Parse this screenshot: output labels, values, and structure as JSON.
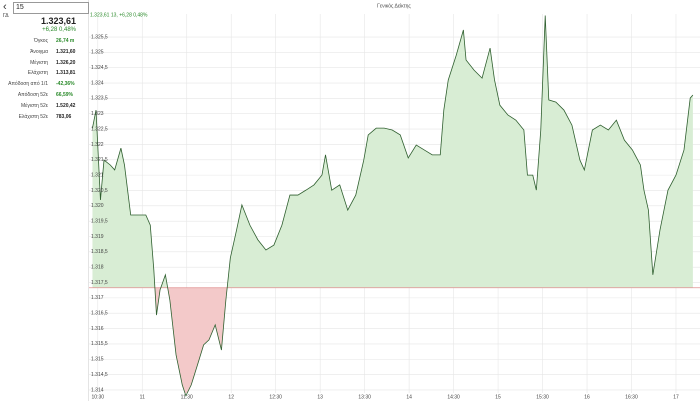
{
  "header": {
    "search": "15",
    "code": "ΓΔ"
  },
  "sidebar": {
    "last": "1.323,61",
    "change": "+6,28  0,48%",
    "rows": [
      {
        "label": "Όγκος",
        "value": "26,74 m",
        "positive": true
      },
      {
        "label": "Άνοιγμα",
        "value": "1.321,60",
        "positive": false
      },
      {
        "label": "Μέγιστη",
        "value": "1.326,20",
        "positive": false
      },
      {
        "label": "Ελάχιστη",
        "value": "1.313,81",
        "positive": false
      },
      {
        "label": "Απόδοση από 1/1",
        "value": "-42,36%",
        "positive": true
      },
      {
        "label": "Απόδοση 52ε",
        "value": "66,59%",
        "positive": true
      },
      {
        "label": "Μέγιστη 52ε",
        "value": "1.520,42",
        "positive": false
      },
      {
        "label": "Ελάχιστη 52ε",
        "value": "783,06",
        "positive": false
      }
    ]
  },
  "chart_data": {
    "type": "area",
    "title": "Γενικός Δείκτης",
    "subtitle": "1.323,61 13, +6,28 0,48%",
    "x": [
      10.44,
      10.48,
      10.53,
      10.57,
      10.64,
      10.69,
      10.76,
      10.8,
      10.87,
      10.96,
      11.04,
      11.09,
      11.13,
      11.16,
      11.2,
      11.26,
      11.31,
      11.38,
      11.45,
      11.49,
      11.55,
      11.62,
      11.69,
      11.75,
      11.82,
      11.89,
      11.94,
      11.99,
      12.06,
      12.12,
      12.21,
      12.3,
      12.39,
      12.48,
      12.57,
      12.66,
      12.75,
      12.84,
      12.93,
      13.02,
      13.06,
      13.13,
      13.22,
      13.31,
      13.4,
      13.49,
      13.54,
      13.63,
      13.72,
      13.81,
      13.9,
      13.99,
      14.08,
      14.17,
      14.26,
      14.35,
      14.39,
      14.44,
      14.53,
      14.61,
      14.64,
      14.73,
      14.82,
      14.91,
      14.96,
      15.02,
      15.11,
      15.2,
      15.29,
      15.33,
      15.39,
      15.43,
      15.48,
      15.53,
      15.57,
      15.65,
      15.74,
      15.83,
      15.92,
      15.97,
      16.06,
      16.15,
      16.24,
      16.33,
      16.42,
      16.51,
      16.6,
      16.64,
      16.69,
      16.74,
      16.82,
      16.91,
      17.0,
      17.09,
      17.16,
      17.19
    ],
    "values": [
      1322.53,
      1323.12,
      1320.19,
      1321.49,
      1321.33,
      1321.17,
      1321.88,
      1321.33,
      1319.7,
      1319.7,
      1319.7,
      1319.37,
      1317.91,
      1316.44,
      1317.26,
      1317.75,
      1316.93,
      1315.14,
      1314.16,
      1313.81,
      1314.16,
      1314.81,
      1315.47,
      1315.63,
      1316.12,
      1315.3,
      1316.93,
      1318.3,
      1319.21,
      1320.03,
      1319.37,
      1318.89,
      1318.56,
      1318.72,
      1319.37,
      1320.35,
      1320.35,
      1320.51,
      1320.68,
      1321.0,
      1321.66,
      1320.51,
      1320.68,
      1319.86,
      1320.35,
      1321.49,
      1322.31,
      1322.53,
      1322.53,
      1322.47,
      1322.31,
      1321.56,
      1321.98,
      1321.82,
      1321.66,
      1321.66,
      1323.12,
      1324.1,
      1324.91,
      1325.73,
      1324.75,
      1324.42,
      1324.16,
      1325.14,
      1324.1,
      1323.28,
      1322.96,
      1322.79,
      1322.47,
      1321.0,
      1321.0,
      1320.51,
      1322.47,
      1326.2,
      1323.45,
      1323.38,
      1323.12,
      1322.63,
      1321.49,
      1321.17,
      1322.47,
      1322.63,
      1322.47,
      1322.79,
      1322.14,
      1321.82,
      1321.33,
      1320.51,
      1319.86,
      1317.75,
      1319.21,
      1320.51,
      1321.0,
      1321.82,
      1323.51,
      1323.61
    ],
    "baseline": 1317.33,
    "color": "#2f5f2f",
    "fill_above": "#d8edd4",
    "fill_below": "#f3c9c9",
    "baseline_color": "#e09090",
    "xlim": [
      10.39,
      17.27
    ],
    "ylim": [
      1313.9,
      1326.25
    ],
    "xticks": [
      {
        "value": 10.5,
        "label": "10:30"
      },
      11,
      {
        "value": 11.5,
        "label": "11:30"
      },
      12,
      {
        "value": 12.5,
        "label": "12:30"
      },
      13,
      {
        "value": 13.5,
        "label": "13:30"
      },
      14,
      {
        "value": 14.5,
        "label": "14:30"
      },
      15,
      {
        "value": 15.5,
        "label": "15:30"
      },
      16,
      {
        "value": 16.5,
        "label": "16:30"
      },
      17
    ],
    "yticks": [
      {
        "value": 1314,
        "label": "1.314"
      },
      {
        "value": 1314.5,
        "label": "1.314,5"
      },
      {
        "value": 1315,
        "label": "1.315"
      },
      {
        "value": 1315.5,
        "label": "1.315,5"
      },
      {
        "value": 1316,
        "label": "1.316"
      },
      {
        "value": 1316.5,
        "label": "1.316,5"
      },
      {
        "value": 1317,
        "label": "1.317"
      },
      {
        "value": 1317.5,
        "label": "1.317,5"
      },
      {
        "value": 1318,
        "label": "1.318"
      },
      {
        "value": 1318.5,
        "label": "1.318,5"
      },
      {
        "value": 1319,
        "label": "1.319"
      },
      {
        "value": 1319.5,
        "label": "1.319,5"
      },
      {
        "value": 1320,
        "label": "1.320"
      },
      {
        "value": 1320.5,
        "label": "1.320,5"
      },
      {
        "value": 1321,
        "label": "1.321"
      },
      {
        "value": 1321.5,
        "label": "1.321,5"
      },
      {
        "value": 1322,
        "label": "1.322"
      },
      {
        "value": 1322.5,
        "label": "1.322,5"
      },
      {
        "value": 1323,
        "label": "1.323"
      },
      {
        "value": 1323.5,
        "label": "1.323,5"
      },
      {
        "value": 1324,
        "label": "1.324"
      },
      {
        "value": 1324.5,
        "label": "1.324,5"
      },
      {
        "value": 1325,
        "label": "1.325"
      },
      {
        "value": 1325.5,
        "label": "1.325,5"
      }
    ],
    "grid": true
  }
}
